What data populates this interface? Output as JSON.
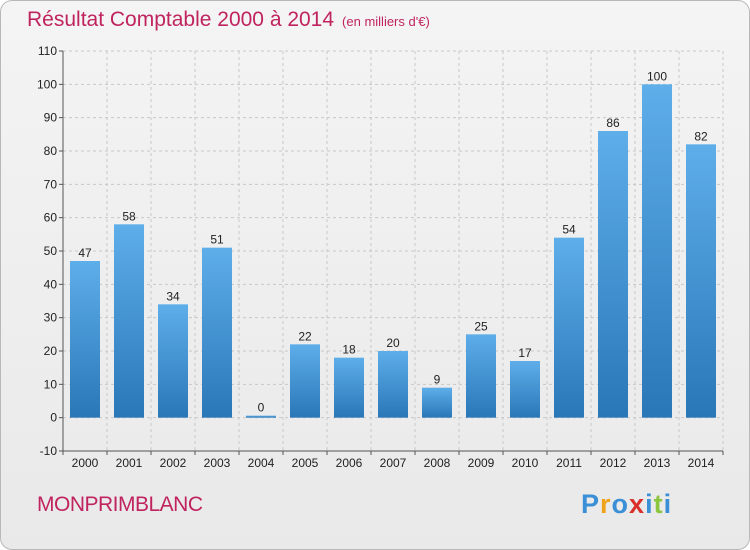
{
  "header": {
    "title": "Résultat Comptable 2000 à 2014",
    "subtitle": "(en milliers d'€)"
  },
  "footer": {
    "city": "MONPRIMBLANC",
    "logo": [
      "P",
      "r",
      "o",
      "x",
      "i",
      "t",
      "i"
    ],
    "logo_colors": [
      "#3a8fd6",
      "#f0a21a",
      "#3a8fd6",
      "#d9302c",
      "#3a8fd6",
      "#8cc63f",
      "#3a8fd6"
    ]
  },
  "colors": {
    "bar_light": "#5eaeea",
    "bar_dark": "#2a77b8",
    "title": "#c0245f"
  },
  "chart_data": {
    "type": "bar",
    "title": "Résultat Comptable 2000 à 2014",
    "subtitle": "(en milliers d'€)",
    "xlabel": "",
    "ylabel": "",
    "categories": [
      "2000",
      "2001",
      "2002",
      "2003",
      "2004",
      "2005",
      "2006",
      "2007",
      "2008",
      "2009",
      "2010",
      "2011",
      "2012",
      "2013",
      "2014"
    ],
    "values": [
      47,
      58,
      34,
      51,
      0,
      22,
      18,
      20,
      9,
      25,
      17,
      54,
      86,
      100,
      82
    ],
    "value_labels": [
      "47",
      "58",
      "34",
      "51",
      "0",
      "22",
      "18",
      "20",
      "9",
      "25",
      "17",
      "54",
      "86",
      "100",
      "82"
    ],
    "yticks": [
      -10,
      0,
      10,
      20,
      30,
      40,
      50,
      60,
      70,
      80,
      90,
      100,
      110
    ],
    "ytick_labels": [
      "-10",
      "0",
      "10",
      "20",
      "30",
      "40",
      "50",
      "60",
      "70",
      "80",
      "90",
      "100",
      "110"
    ],
    "ylim": [
      -10,
      110
    ],
    "grid": true,
    "legend": "none"
  }
}
